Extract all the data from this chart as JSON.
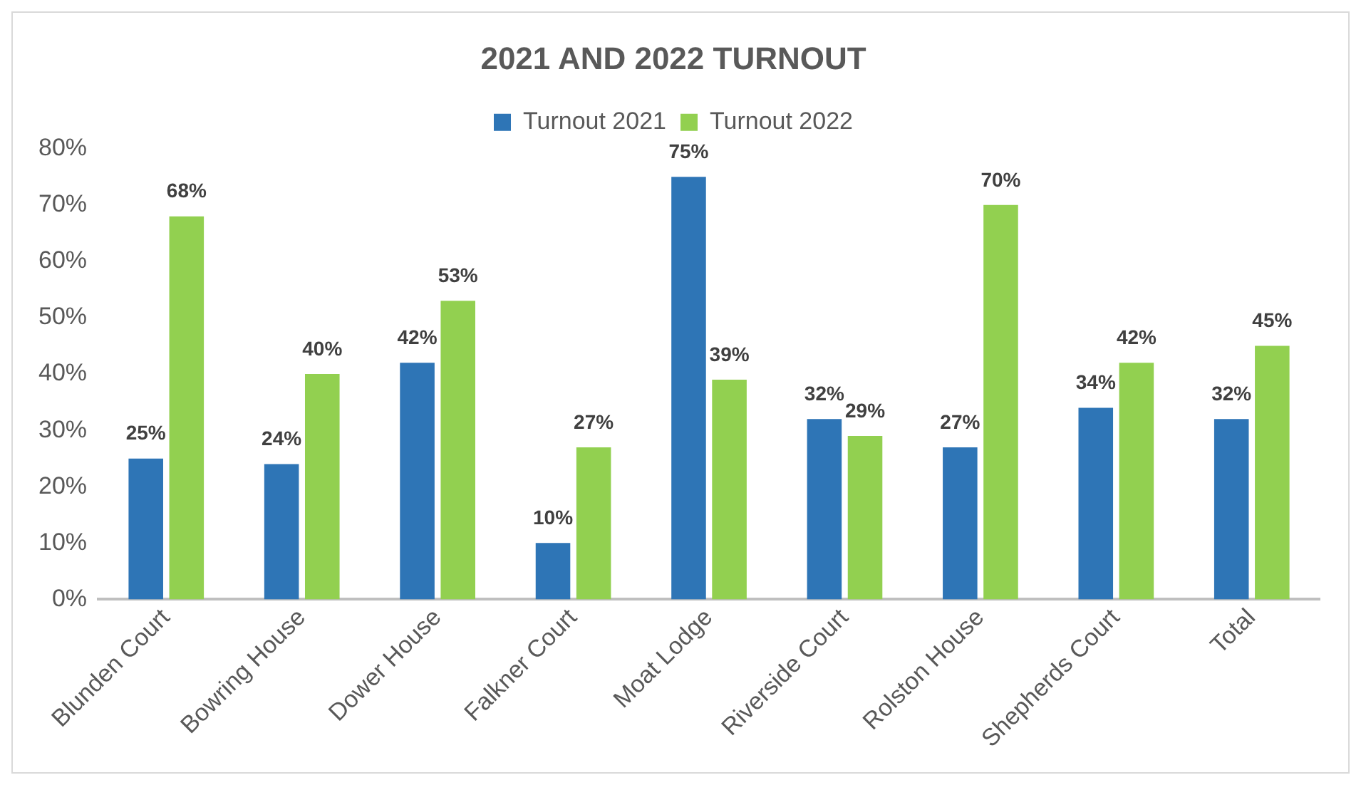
{
  "chart_data": {
    "type": "bar",
    "title": "2021 AND 2022 TURNOUT",
    "categories": [
      "Blunden Court",
      "Bowring House",
      "Dower House",
      "Falkner Court",
      "Moat Lodge",
      "Riverside Court",
      "Rolston House",
      "Shepherds Court",
      "Total"
    ],
    "series": [
      {
        "name": "Turnout 2021",
        "color": "#2e75b6",
        "values": [
          25,
          24,
          42,
          10,
          75,
          32,
          27,
          34,
          32
        ],
        "value_labels": [
          "25%",
          "24%",
          "42%",
          "10%",
          "75%",
          "32%",
          "27%",
          "34%",
          "32%"
        ]
      },
      {
        "name": "Turnout 2022",
        "color": "#92d050",
        "values": [
          68,
          40,
          53,
          27,
          39,
          29,
          70,
          42,
          45
        ],
        "value_labels": [
          "68%",
          "40%",
          "53%",
          "27%",
          "39%",
          "29%",
          "70%",
          "42%",
          "45%"
        ]
      }
    ],
    "ylim": [
      0,
      80
    ],
    "yticks": [
      {
        "value": 0,
        "label": "0%"
      },
      {
        "value": 10,
        "label": "10%"
      },
      {
        "value": 20,
        "label": "20%"
      },
      {
        "value": 30,
        "label": "30%"
      },
      {
        "value": 40,
        "label": "40%"
      },
      {
        "value": 50,
        "label": "50%"
      },
      {
        "value": 60,
        "label": "60%"
      },
      {
        "value": 70,
        "label": "70%"
      },
      {
        "value": 80,
        "label": "80%"
      }
    ],
    "grid": false,
    "legend": "top"
  }
}
